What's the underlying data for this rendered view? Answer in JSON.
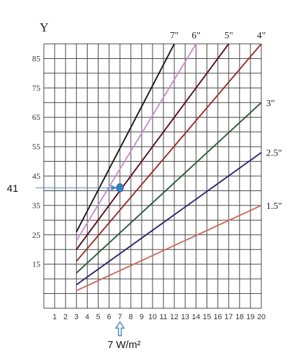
{
  "chart_data": {
    "type": "line",
    "title": "",
    "ylabel": "Y",
    "xlabel": "",
    "x_ticks": [
      1,
      2,
      3,
      4,
      5,
      6,
      7,
      8,
      9,
      10,
      11,
      12,
      13,
      14,
      15,
      16,
      17,
      18,
      19,
      20
    ],
    "y_ticks": [
      15,
      25,
      35,
      45,
      55,
      65,
      75,
      85
    ],
    "xlim": [
      0,
      20
    ],
    "ylim": [
      0,
      90
    ],
    "grid": true,
    "series": [
      {
        "name": "7\"",
        "color": "#1a1a1a",
        "x": [
          3,
          12
        ],
        "y": [
          26,
          90
        ]
      },
      {
        "name": "6\"",
        "color": "#c890c8",
        "x": [
          3,
          14
        ],
        "y": [
          23,
          90
        ]
      },
      {
        "name": "5\"",
        "color": "#5a0f1e",
        "x": [
          3,
          17
        ],
        "y": [
          20,
          90
        ]
      },
      {
        "name": "4\"",
        "color": "#9a2f2f",
        "x": [
          3,
          20
        ],
        "y": [
          16,
          90
        ]
      },
      {
        "name": "3\"",
        "color": "#2e5e3e",
        "x": [
          3,
          20
        ],
        "y": [
          12,
          70
        ]
      },
      {
        "name": "2.5\"",
        "color": "#2a2a6e",
        "x": [
          3,
          20
        ],
        "y": [
          8,
          53
        ]
      },
      {
        "name": "1.5\"",
        "color": "#c87060",
        "x": [
          3,
          20
        ],
        "y": [
          6,
          35
        ]
      }
    ],
    "annotations": {
      "point": {
        "x": 7,
        "y": 41,
        "color": "#3a7ec8"
      },
      "y_value_label": "41",
      "x_value_label": "7 W/m²",
      "arrow_color": "#4a86c5"
    }
  }
}
